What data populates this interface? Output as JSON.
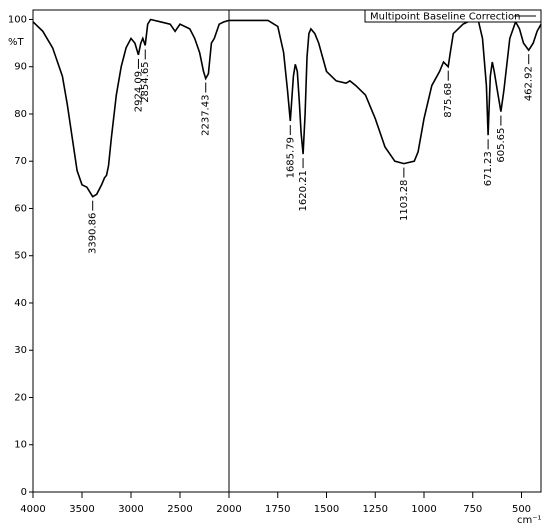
{
  "chart_data": {
    "type": "line",
    "y_label": "%T",
    "x_label": "cm⁻¹",
    "x_break": 2000,
    "xlim": [
      4000,
      400
    ],
    "ylim": [
      0,
      102
    ],
    "xticks": [
      4000,
      3500,
      3000,
      2500,
      2000,
      1750,
      1500,
      1250,
      1000,
      750,
      500
    ],
    "yticks": [
      0,
      10,
      20,
      30,
      40,
      50,
      60,
      70,
      80,
      90,
      100
    ],
    "legend": "top-right",
    "x": [
      4000,
      3900,
      3800,
      3700,
      3650,
      3600,
      3550,
      3500,
      3450,
      3420,
      3390.86,
      3350,
      3300,
      3270,
      3250,
      3230,
      3200,
      3150,
      3100,
      3050,
      3000,
      2960,
      2924.09,
      2900,
      2880,
      2854.65,
      2830,
      2800,
      2700,
      2600,
      2550,
      2500,
      2400,
      2350,
      2300,
      2260,
      2237.43,
      2210,
      2180,
      2150,
      2100,
      2050,
      2000,
      1900,
      1800,
      1750,
      1720,
      1700,
      1685.79,
      1670,
      1660,
      1650,
      1640,
      1630,
      1620.21,
      1610,
      1600,
      1590,
      1580,
      1560,
      1540,
      1500,
      1450,
      1400,
      1380,
      1350,
      1300,
      1250,
      1200,
      1150,
      1103.28,
      1050,
      1030,
      1000,
      960,
      920,
      900,
      875.68,
      865,
      850,
      800,
      750,
      720,
      700,
      680,
      671.23,
      660,
      650,
      640,
      620,
      605.65,
      590,
      560,
      530,
      510,
      490,
      462.92,
      440,
      420,
      400
    ],
    "series": [
      {
        "name": "Multipoint Baseline Correction",
        "color": "#000000",
        "values": [
          99.5,
          97.5,
          94,
          88,
          82,
          75,
          68,
          65,
          64.5,
          63.5,
          62.5,
          63,
          65,
          66.5,
          67,
          69,
          75,
          84,
          90,
          94,
          96,
          95,
          92.5,
          95,
          96,
          94.5,
          99,
          100,
          99.5,
          99,
          97.5,
          99,
          98,
          96,
          93,
          89,
          87.5,
          88.5,
          95,
          96,
          99,
          99.5,
          99.8,
          99.8,
          99.8,
          98.5,
          93,
          85,
          78.5,
          88,
          90.5,
          89,
          83,
          76,
          71.5,
          80,
          92,
          97,
          98,
          97,
          95,
          89,
          87,
          86.5,
          87,
          86,
          84,
          79,
          73,
          70,
          69.5,
          70,
          72,
          79,
          86,
          89,
          91,
          90,
          93,
          97,
          99,
          100,
          99.5,
          96,
          86,
          75.5,
          88,
          91,
          89,
          84,
          80.5,
          85,
          96,
          99.5,
          98,
          95,
          93.5,
          95,
          97.5,
          99
        ]
      }
    ],
    "peak_labels": [
      3390.86,
      2924.09,
      2854.65,
      2237.43,
      1685.79,
      1620.21,
      1103.28,
      875.68,
      671.23,
      605.65,
      462.92
    ]
  }
}
